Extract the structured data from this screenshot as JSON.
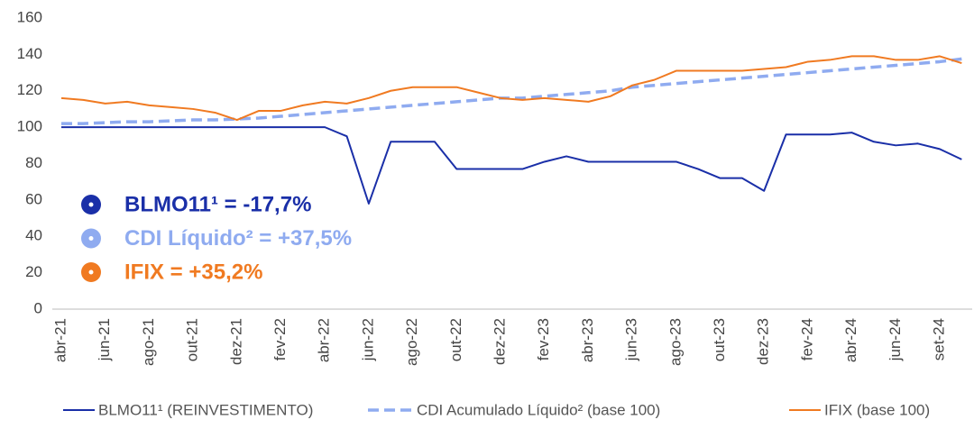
{
  "chart_data": {
    "type": "line",
    "categories": [
      "abr-21",
      null,
      "jun-21",
      null,
      "ago-21",
      null,
      "out-21",
      null,
      "dez-21",
      null,
      "fev-22",
      null,
      "abr-22",
      null,
      "jun-22",
      null,
      "ago-22",
      null,
      "out-22",
      null,
      "dez-22",
      null,
      "fev-23",
      null,
      "abr-23",
      null,
      "jun-23",
      null,
      "ago-23",
      null,
      "out-23",
      null,
      "dez-23",
      null,
      "fev-24",
      null,
      "abr-24",
      null,
      "jun-24",
      null,
      "set-24",
      null
    ],
    "series": [
      {
        "name": "BLMO11¹ (REINVESTIMENTO)",
        "color": "#1a2fa8",
        "style": "solid",
        "values": [
          100,
          100,
          100,
          100,
          100,
          100,
          100,
          100,
          100,
          100,
          100,
          100,
          100,
          95,
          58,
          92,
          92,
          92,
          77,
          77,
          77,
          77,
          81,
          84,
          81,
          81,
          81,
          81,
          81,
          77,
          72,
          72,
          65,
          96,
          96,
          96,
          97,
          92,
          90,
          91,
          88,
          82.3
        ]
      },
      {
        "name": "CDI Acumulado Líquido² (base 100)",
        "color": "#8fabf0",
        "style": "dashed",
        "values": [
          102,
          102,
          102.5,
          103,
          103,
          103.5,
          104,
          104,
          104.5,
          105,
          106,
          107,
          108,
          109,
          110,
          111,
          112,
          113,
          114,
          115,
          116,
          116,
          117,
          118,
          119,
          120,
          122,
          123,
          124,
          125,
          126,
          127,
          128,
          129,
          130,
          131,
          132,
          133,
          134,
          135,
          136,
          137.5
        ]
      },
      {
        "name": "IFIX (base 100)",
        "color": "#f07a21",
        "style": "solid",
        "values": [
          116,
          115,
          113,
          114,
          112,
          111,
          110,
          108,
          104,
          109,
          109,
          112,
          114,
          113,
          116,
          120,
          122,
          122,
          122,
          119,
          116,
          115,
          116,
          115,
          114,
          117,
          123,
          126,
          131,
          131,
          131,
          131,
          132,
          133,
          136,
          137,
          139,
          139,
          137,
          137,
          139,
          135.2
        ]
      }
    ],
    "annotations": [
      "BLMO11¹ = -17,7%",
      "CDI Líquido² = +37,5%",
      "IFIX = +35,2%"
    ],
    "ylim": [
      0,
      160
    ],
    "yticks": [
      0,
      20,
      40,
      60,
      80,
      100,
      120,
      140,
      160
    ],
    "grid": false
  }
}
